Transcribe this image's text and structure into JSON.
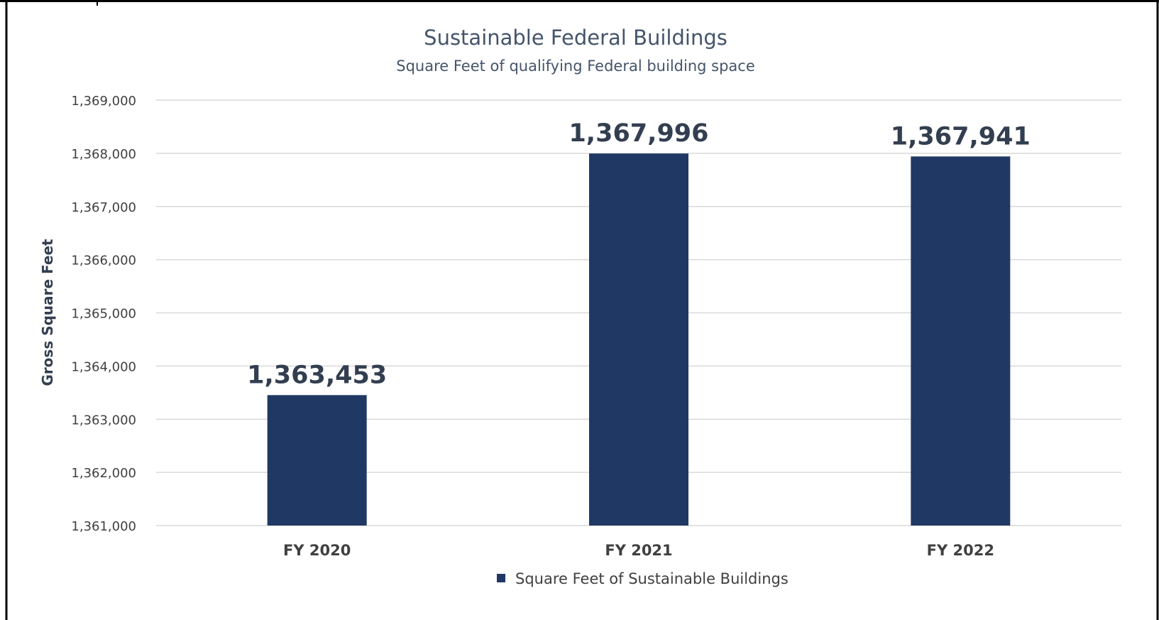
{
  "chart_data": {
    "type": "bar",
    "title": "Sustainable Federal Buildings",
    "subtitle": "Square Feet of qualifying Federal building space",
    "xlabel": "",
    "ylabel": "Gross Square Feet",
    "categories": [
      "FY 2020",
      "FY 2021",
      "FY 2022"
    ],
    "series": [
      {
        "name": "Square Feet of Sustainable Buildings",
        "values": [
          1363453,
          1367996,
          1367941
        ],
        "color": "#203864"
      }
    ],
    "data_labels": [
      "1,363,453",
      "1,367,996",
      "1,367,941"
    ],
    "ylim": [
      1361000,
      1369000
    ],
    "yticks": [
      1361000,
      1362000,
      1363000,
      1364000,
      1365000,
      1366000,
      1367000,
      1368000,
      1369000
    ],
    "ytick_labels": [
      "1,361,000",
      "1,362,000",
      "1,363,000",
      "1,364,000",
      "1,365,000",
      "1,366,000",
      "1,367,000",
      "1,368,000",
      "1,369,000"
    ],
    "grid": true,
    "legend_position": "bottom"
  },
  "colors": {
    "bar": "#203864",
    "title": "#44546a",
    "text": "#404040",
    "label": "#333f50",
    "grid": "#d9d9d9",
    "frame": "#000000"
  }
}
